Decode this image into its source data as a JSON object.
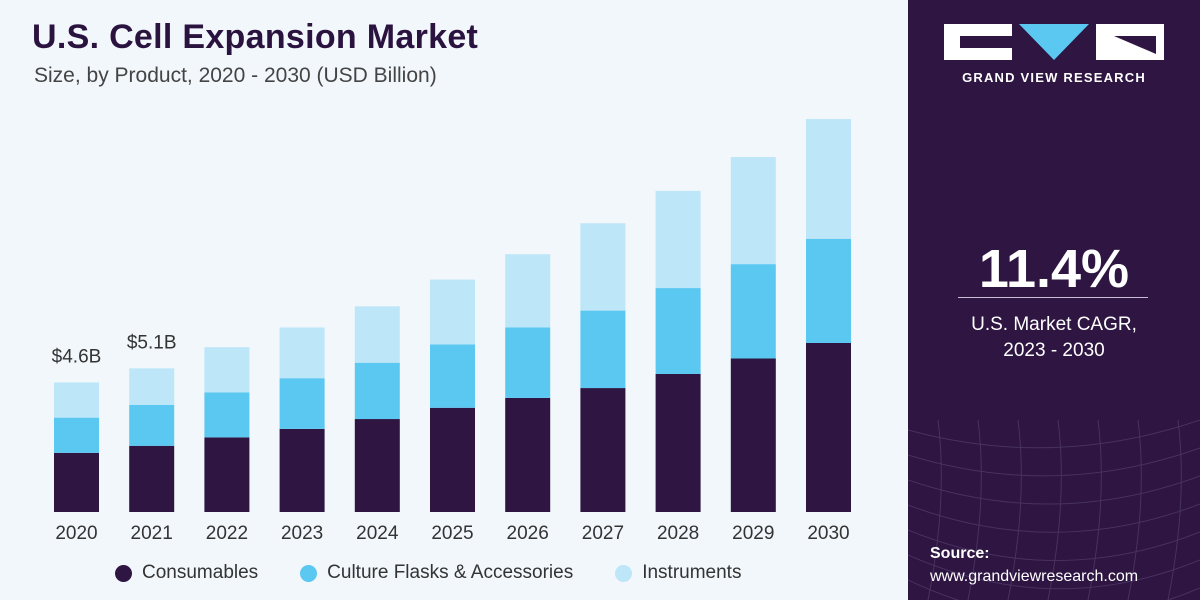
{
  "header": {
    "title": "U.S. Cell Expansion Market",
    "subtitle": "Size, by Product, 2020 - 2030 (USD Billion)"
  },
  "legend": {
    "items": [
      "Consumables",
      "Culture Flasks & Accessories",
      "Instruments"
    ]
  },
  "brand": {
    "name": "GRAND VIEW RESEARCH",
    "cagr_value": "11.4%",
    "cagr_label_line1": "U.S. Market CAGR,",
    "cagr_label_line2": "2023 - 2030",
    "source_label": "Source:",
    "source_url": "www.grandviewresearch.com"
  },
  "colors": {
    "consumables": "#2e1542",
    "culture_flasks": "#5bc8f2",
    "instruments": "#bde6f8",
    "panel": "#2e1542"
  },
  "chart_data": {
    "type": "bar",
    "stacked": true,
    "categories": [
      "2020",
      "2021",
      "2022",
      "2023",
      "2024",
      "2025",
      "2026",
      "2027",
      "2028",
      "2029",
      "2030"
    ],
    "series": [
      {
        "name": "Consumables",
        "values": [
          2.1,
          2.35,
          2.65,
          2.95,
          3.3,
          3.7,
          4.05,
          4.4,
          4.9,
          5.45,
          6.0
        ]
      },
      {
        "name": "Culture Flasks & Accessories",
        "values": [
          1.25,
          1.45,
          1.6,
          1.8,
          2.0,
          2.25,
          2.5,
          2.75,
          3.05,
          3.35,
          3.7
        ]
      },
      {
        "name": "Instruments",
        "values": [
          1.25,
          1.3,
          1.6,
          1.8,
          2.0,
          2.3,
          2.6,
          3.1,
          3.45,
          3.8,
          4.25
        ]
      }
    ],
    "data_labels": [
      {
        "category": "2020",
        "text": "$4.6B"
      },
      {
        "category": "2021",
        "text": "$5.1B"
      }
    ],
    "ylim": [
      0,
      14.2
    ],
    "grid": false,
    "legend_position": "bottom"
  }
}
